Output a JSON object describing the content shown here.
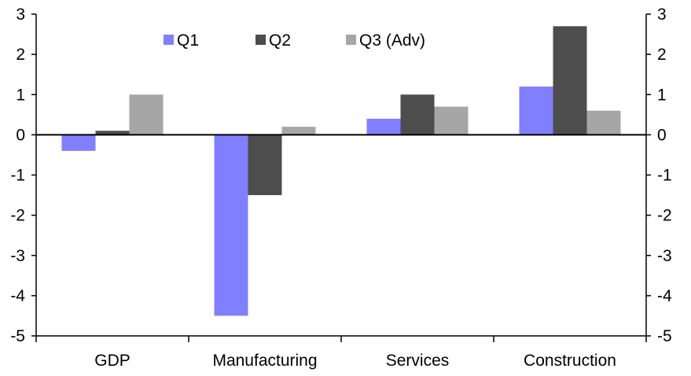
{
  "chart_data": {
    "type": "bar",
    "categories": [
      "GDP",
      "Manufacturing",
      "Services",
      "Construction"
    ],
    "series": [
      {
        "name": "Q1",
        "values": [
          -0.4,
          -4.5,
          0.4,
          1.2
        ],
        "color": "#8080FF"
      },
      {
        "name": "Q2",
        "values": [
          0.1,
          -1.5,
          1.0,
          2.7
        ],
        "color": "#4D4D4D"
      },
      {
        "name": "Q3 (Adv)",
        "values": [
          1.0,
          0.2,
          0.7,
          0.6
        ],
        "color": "#A6A6A6"
      }
    ],
    "ylim": [
      -5,
      3
    ],
    "yticks": [
      3,
      2,
      1,
      0,
      -1,
      -2,
      -3,
      -4,
      -5
    ],
    "secondary_axis": true,
    "grid": false,
    "legend": "top-center",
    "title": "",
    "xlabel": "",
    "ylabel": ""
  }
}
